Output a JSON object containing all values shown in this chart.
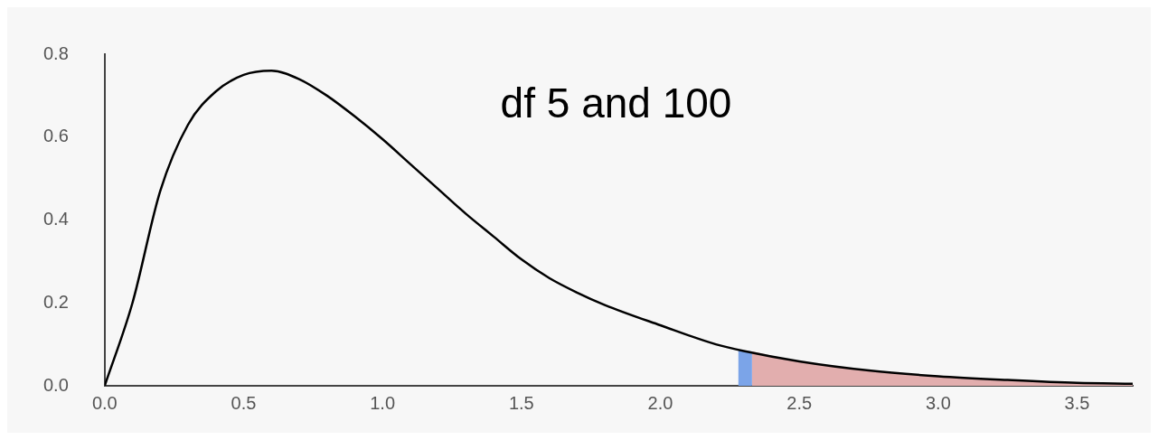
{
  "chart_data": {
    "type": "line",
    "annotations": [
      "df 5 and 100"
    ],
    "series": [
      {
        "type": "area",
        "color": "#7ba4e8",
        "x": [
          2.28,
          2.33
        ],
        "values": [
          0.088,
          0.083
        ]
      },
      {
        "type": "area",
        "color": "#e2aeae",
        "x": [
          2.33,
          2.5,
          2.75,
          3.0,
          3.25,
          3.5,
          3.7
        ],
        "values": [
          0.083,
          0.059,
          0.037,
          0.023,
          0.014,
          0.007,
          0.005
        ]
      },
      {
        "color": "#000000",
        "x": [
          0,
          0.1,
          0.2,
          0.3,
          0.4,
          0.5,
          0.6,
          0.7,
          0.8,
          0.9,
          1.0,
          1.1,
          1.2,
          1.3,
          1.4,
          1.5,
          1.6,
          1.7,
          1.8,
          2.0,
          2.2,
          2.3,
          2.5,
          2.75,
          3.0,
          3.25,
          3.5,
          3.7
        ],
        "values": [
          0,
          0.2,
          0.47,
          0.63,
          0.71,
          0.75,
          0.76,
          0.74,
          0.7,
          0.65,
          0.595,
          0.535,
          0.475,
          0.415,
          0.36,
          0.305,
          0.26,
          0.225,
          0.195,
          0.146,
          0.1,
          0.084,
          0.059,
          0.037,
          0.023,
          0.014,
          0.007,
          0.005
        ]
      }
    ],
    "xlim": [
      0,
      3.7
    ],
    "xticks": [
      {
        "value": 0,
        "label": "0.0"
      },
      {
        "value": 0.5,
        "label": "0.5"
      },
      {
        "value": 1,
        "label": "1.0"
      },
      {
        "value": 1.5,
        "label": "1.5"
      },
      {
        "value": 2,
        "label": "2.0"
      },
      {
        "value": 2.5,
        "label": "2.5"
      },
      {
        "value": 3,
        "label": "3.0"
      },
      {
        "value": 3.5,
        "label": "3.5"
      }
    ],
    "ylim": [
      0,
      0.8
    ],
    "yticks": [
      {
        "value": 0,
        "label": "0.0"
      },
      {
        "value": 0.2,
        "label": "0.2"
      },
      {
        "value": 0.4,
        "label": "0.4"
      },
      {
        "value": 0.6,
        "label": "0.6"
      },
      {
        "value": 0.8,
        "label": "0.8"
      }
    ],
    "grid": false,
    "legend": false,
    "marker": "none",
    "line_style": "solid"
  }
}
